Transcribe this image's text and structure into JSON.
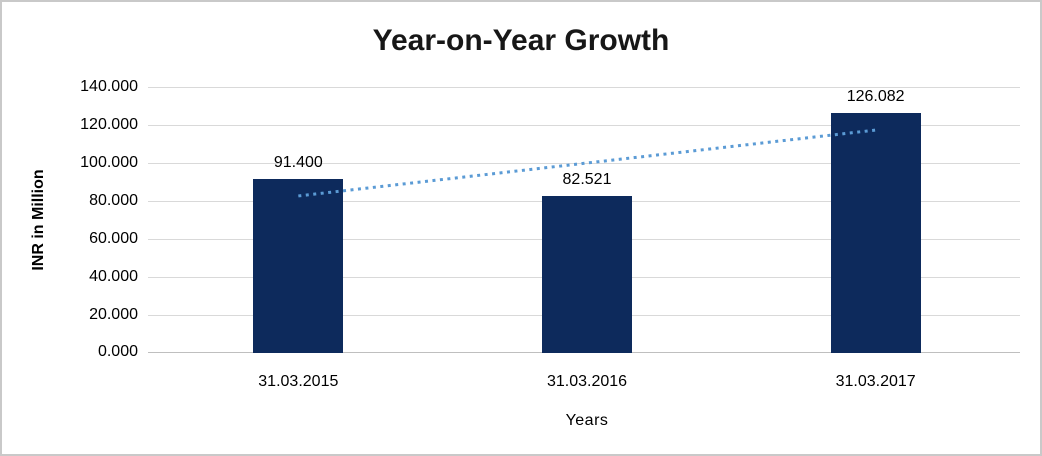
{
  "chart_data": {
    "type": "bar",
    "title": "Year-on-Year Growth",
    "xlabel": "Years",
    "ylabel": "INR in Million",
    "categories": [
      "31.03.2015",
      "31.03.2016",
      "31.03.2017"
    ],
    "values": [
      91.4,
      82.521,
      126.082
    ],
    "data_labels": [
      "91.400",
      "82.521",
      "126.082"
    ],
    "y_ticks": [
      {
        "label": "140.000",
        "value": 140
      },
      {
        "label": "120.000",
        "value": 120
      },
      {
        "label": "100.000",
        "value": 100
      },
      {
        "label": "80.000",
        "value": 80
      },
      {
        "label": "60.000",
        "value": 60
      },
      {
        "label": "40.000",
        "value": 40
      },
      {
        "label": "20.000",
        "value": 20
      },
      {
        "label": "0.000",
        "value": 0
      }
    ],
    "ylim": [
      0,
      140
    ],
    "grid": true,
    "legend": "none",
    "bar_color": "#0d2a5c",
    "trendline": {
      "type": "linear",
      "style": "dotted",
      "color": "#5b9bd5"
    },
    "gridline_color": "#d9d9d9",
    "axis_line_color": "#bfbfbf"
  }
}
